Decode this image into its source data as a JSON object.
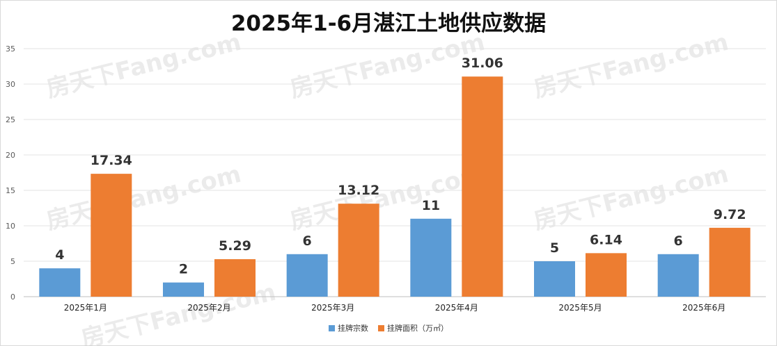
{
  "chart_data": {
    "type": "bar",
    "title": "2025年1-6月湛江土地供应数据",
    "categories": [
      "2025年1月",
      "2025年2月",
      "2025年3月",
      "2025年4月",
      "2025年5月",
      "2025年6月"
    ],
    "series": [
      {
        "name": "挂牌宗数",
        "color": "#5b9bd5",
        "values": [
          4,
          2,
          6,
          11,
          5,
          6
        ],
        "labels": [
          "4",
          "2",
          "6",
          "11",
          "5",
          "6"
        ]
      },
      {
        "name": "挂牌面积（万㎡）",
        "color": "#ed7d31",
        "values": [
          17.34,
          5.29,
          13.12,
          31.06,
          6.14,
          9.72
        ],
        "labels": [
          "17.34",
          "5.29",
          "13.12",
          "31.06",
          "6.14",
          "9.72"
        ]
      }
    ],
    "yticks": [
      "0",
      "5",
      "10",
      "15",
      "20",
      "25",
      "30",
      "35"
    ],
    "ylim": [
      0,
      35
    ],
    "grid": true,
    "legend": "bottom",
    "watermark": "房天下Fang.com"
  }
}
